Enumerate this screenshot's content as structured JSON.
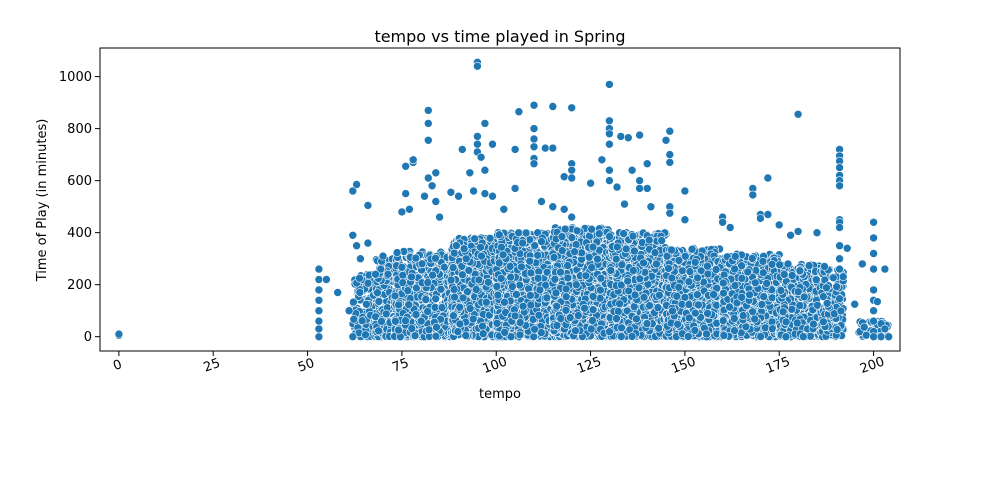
{
  "chart_data": {
    "type": "scatter",
    "title": "tempo vs time played in Spring",
    "xlabel": "tempo",
    "ylabel": "Time of Play (in minutes)",
    "xlim": [
      -5,
      207
    ],
    "ylim": [
      -55,
      1110
    ],
    "xticks": [
      0,
      25,
      50,
      75,
      100,
      125,
      150,
      175,
      200
    ],
    "yticks": [
      0,
      200,
      400,
      600,
      800,
      1000
    ],
    "x_tick_rotation": 20,
    "grid": false,
    "legend": "none",
    "marker_color": "#1f77b4",
    "marker_edge": "#ffffff",
    "points": [
      [
        0,
        5
      ],
      [
        0,
        10
      ],
      [
        53,
        0
      ],
      [
        53,
        30
      ],
      [
        53,
        60
      ],
      [
        53,
        100
      ],
      [
        53,
        140
      ],
      [
        53,
        180
      ],
      [
        53,
        220
      ],
      [
        53,
        260
      ],
      [
        55,
        220
      ],
      [
        58,
        170
      ],
      [
        62,
        560
      ],
      [
        63,
        585
      ],
      [
        62,
        390
      ],
      [
        63,
        350
      ],
      [
        61,
        100
      ],
      [
        62,
        0
      ],
      [
        64,
        300
      ],
      [
        66,
        505
      ],
      [
        66,
        360
      ],
      [
        68,
        240
      ],
      [
        70,
        310
      ],
      [
        75,
        480
      ],
      [
        76,
        550
      ],
      [
        76,
        655
      ],
      [
        78,
        670
      ],
      [
        78,
        680
      ],
      [
        77,
        490
      ],
      [
        82,
        870
      ],
      [
        82,
        820
      ],
      [
        82,
        755
      ],
      [
        82,
        610
      ],
      [
        83,
        580
      ],
      [
        84,
        630
      ],
      [
        84,
        520
      ],
      [
        85,
        460
      ],
      [
        81,
        540
      ],
      [
        88,
        555
      ],
      [
        90,
        540
      ],
      [
        91,
        720
      ],
      [
        93,
        630
      ],
      [
        94,
        560
      ],
      [
        95,
        1055
      ],
      [
        95,
        1040
      ],
      [
        95,
        770
      ],
      [
        95,
        740
      ],
      [
        95,
        710
      ],
      [
        96,
        690
      ],
      [
        97,
        820
      ],
      [
        97,
        640
      ],
      [
        97,
        550
      ],
      [
        99,
        740
      ],
      [
        99,
        540
      ],
      [
        102,
        490
      ],
      [
        105,
        720
      ],
      [
        105,
        570
      ],
      [
        106,
        865
      ],
      [
        110,
        890
      ],
      [
        110,
        800
      ],
      [
        110,
        760
      ],
      [
        110,
        730
      ],
      [
        110,
        685
      ],
      [
        110,
        665
      ],
      [
        112,
        520
      ],
      [
        113,
        725
      ],
      [
        115,
        725
      ],
      [
        115,
        885
      ],
      [
        115,
        500
      ],
      [
        118,
        615
      ],
      [
        118,
        490
      ],
      [
        120,
        880
      ],
      [
        120,
        665
      ],
      [
        120,
        640
      ],
      [
        120,
        610
      ],
      [
        120,
        460
      ],
      [
        125,
        590
      ],
      [
        128,
        680
      ],
      [
        130,
        970
      ],
      [
        130,
        830
      ],
      [
        130,
        800
      ],
      [
        130,
        780
      ],
      [
        130,
        740
      ],
      [
        130,
        640
      ],
      [
        130,
        600
      ],
      [
        132,
        575
      ],
      [
        133,
        770
      ],
      [
        134,
        510
      ],
      [
        135,
        765
      ],
      [
        136,
        640
      ],
      [
        138,
        775
      ],
      [
        138,
        600
      ],
      [
        138,
        570
      ],
      [
        140,
        665
      ],
      [
        140,
        570
      ],
      [
        141,
        500
      ],
      [
        145,
        755
      ],
      [
        146,
        790
      ],
      [
        146,
        700
      ],
      [
        146,
        670
      ],
      [
        146,
        500
      ],
      [
        146,
        475
      ],
      [
        150,
        560
      ],
      [
        150,
        450
      ],
      [
        160,
        460
      ],
      [
        160,
        440
      ],
      [
        162,
        420
      ],
      [
        168,
        565
      ],
      [
        168,
        570
      ],
      [
        168,
        545
      ],
      [
        170,
        470
      ],
      [
        170,
        455
      ],
      [
        172,
        610
      ],
      [
        172,
        470
      ],
      [
        175,
        430
      ],
      [
        180,
        855
      ],
      [
        180,
        405
      ],
      [
        178,
        390
      ],
      [
        185,
        400
      ],
      [
        187,
        270
      ],
      [
        191,
        720
      ],
      [
        191,
        695
      ],
      [
        191,
        675
      ],
      [
        191,
        650
      ],
      [
        191,
        620
      ],
      [
        191,
        600
      ],
      [
        191,
        580
      ],
      [
        191,
        450
      ],
      [
        191,
        440
      ],
      [
        191,
        420
      ],
      [
        191,
        350
      ],
      [
        191,
        300
      ],
      [
        191,
        260
      ],
      [
        193,
        340
      ],
      [
        195,
        125
      ],
      [
        197,
        280
      ],
      [
        200,
        440
      ],
      [
        200,
        380
      ],
      [
        200,
        320
      ],
      [
        200,
        260
      ],
      [
        200,
        180
      ],
      [
        200,
        140
      ],
      [
        200,
        100
      ],
      [
        200,
        60
      ],
      [
        200,
        20
      ],
      [
        200,
        0
      ],
      [
        201,
        135
      ],
      [
        202,
        50
      ],
      [
        202,
        0
      ],
      [
        203,
        260
      ],
      [
        203,
        30
      ],
      [
        204,
        0
      ]
    ],
    "dense_regions": [
      {
        "x": [
          62,
          68
        ],
        "ymax": 240,
        "n": 120
      },
      {
        "x": [
          68,
          73
        ],
        "ymax": 300,
        "n": 160
      },
      {
        "x": [
          73,
          88
        ],
        "ymax": 330,
        "n": 620
      },
      {
        "x": [
          88,
          100
        ],
        "ymax": 380,
        "n": 760
      },
      {
        "x": [
          100,
          115
        ],
        "ymax": 400,
        "n": 900
      },
      {
        "x": [
          115,
          130
        ],
        "ymax": 420,
        "n": 900
      },
      {
        "x": [
          130,
          145
        ],
        "ymax": 400,
        "n": 900
      },
      {
        "x": [
          145,
          160
        ],
        "ymax": 340,
        "n": 680
      },
      {
        "x": [
          160,
          175
        ],
        "ymax": 320,
        "n": 620
      },
      {
        "x": [
          175,
          186
        ],
        "ymax": 280,
        "n": 430
      },
      {
        "x": [
          186,
          192
        ],
        "ymax": 260,
        "n": 160
      },
      {
        "x": [
          196,
          204
        ],
        "ymax": 60,
        "n": 40
      }
    ]
  }
}
